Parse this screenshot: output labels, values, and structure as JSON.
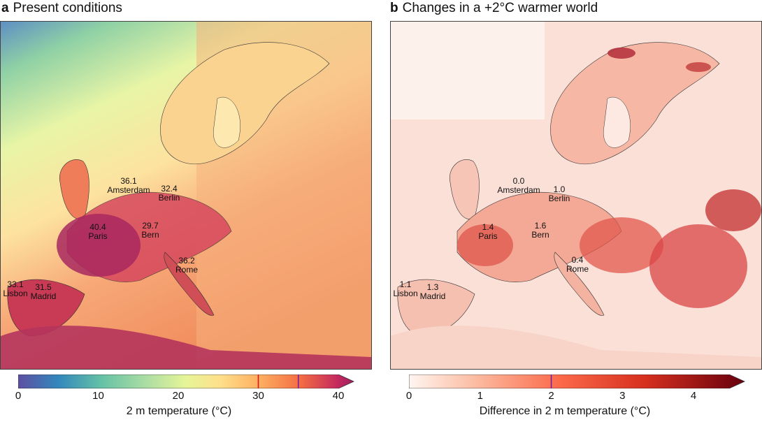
{
  "panel_a": {
    "letter": "a",
    "title": "Present conditions",
    "cities": [
      {
        "value": "36.1",
        "name": "Amsterdam"
      },
      {
        "value": "32.4",
        "name": "Berlin"
      },
      {
        "value": "40.4",
        "name": "Paris"
      },
      {
        "value": "29.7",
        "name": "Bern"
      },
      {
        "value": "36.2",
        "name": "Rome"
      },
      {
        "value": "33.1",
        "name": "Lisbon"
      },
      {
        "value": "31.5",
        "name": "Madrid"
      }
    ],
    "colorbar": {
      "ticks": [
        "0",
        "10",
        "20",
        "30",
        "40"
      ],
      "min": 0,
      "max": 40,
      "markers": [
        30,
        35
      ],
      "marker_colors": [
        "#d7191c",
        "#7b1fa2"
      ],
      "label": "2 m temperature (°C)"
    }
  },
  "panel_b": {
    "letter": "b",
    "title": "Changes in a +2°C warmer world",
    "cities": [
      {
        "value": "0.0",
        "name": "Amsterdam"
      },
      {
        "value": "1.0",
        "name": "Berlin"
      },
      {
        "value": "1.4",
        "name": "Paris"
      },
      {
        "value": "1.6",
        "name": "Bern"
      },
      {
        "value": "0.4",
        "name": "Rome"
      },
      {
        "value": "1.1",
        "name": "Lisbon"
      },
      {
        "value": "1.3",
        "name": "Madrid"
      }
    ],
    "colorbar": {
      "ticks": [
        "0",
        "1",
        "2",
        "3",
        "4"
      ],
      "min": 0,
      "max": 4.5,
      "markers": [
        2
      ],
      "marker_colors": [
        "#7b1fa2"
      ],
      "label": "Difference in 2 m temperature (°C)"
    }
  }
}
